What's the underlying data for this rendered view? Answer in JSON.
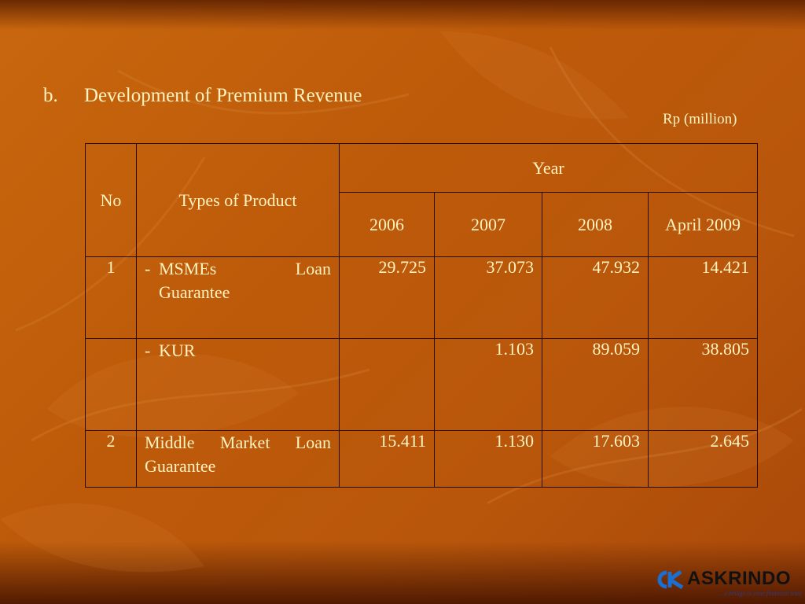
{
  "heading": {
    "marker": "b.",
    "title": "Development of Premium Revenue"
  },
  "unit": "Rp (million)",
  "table": {
    "col_no": "No",
    "col_product": "Types of Product",
    "col_year": "Year",
    "years": [
      "2006",
      "2007",
      "2008",
      "April 2009"
    ],
    "rows": [
      {
        "no": "1",
        "dash": "-",
        "product_line1": "MSMEs Loan",
        "product_line2": "Guarantee",
        "values": [
          "29.725",
          "37.073",
          "47.932",
          "14.421"
        ]
      },
      {
        "no": "",
        "dash": "-",
        "product_line1": "KUR",
        "product_line2": "",
        "values": [
          "",
          "1.103",
          "89.059",
          "38.805"
        ]
      },
      {
        "no": "2",
        "dash": "",
        "product_line1": "Middle Market Loan",
        "product_line2": "Guarantee",
        "values": [
          "15.411",
          "1.130",
          "17.603",
          "2.645"
        ]
      }
    ]
  },
  "logo": {
    "name": "ASKRINDO",
    "tagline": "... a bridge to your financial trust"
  },
  "colors": {
    "text": "#fff3c0",
    "background": "#c0600c",
    "border": "#2a0d00",
    "logo_blue": "#1a6fd0"
  }
}
